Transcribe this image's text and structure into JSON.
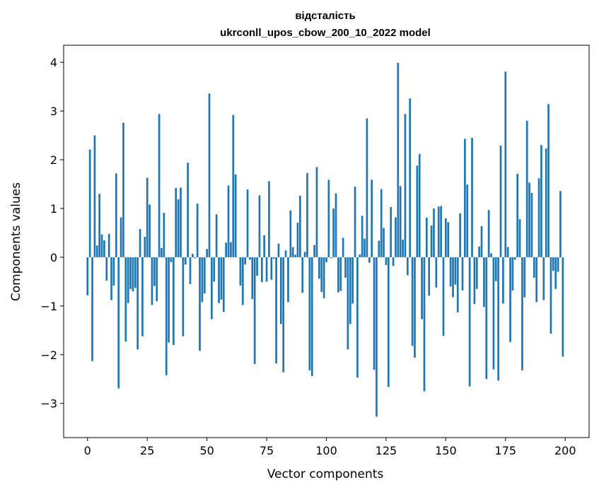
{
  "chart_data": {
    "type": "bar",
    "title": "відсталість",
    "subtitle": "ukrconll_upos_cbow_200_10_2022 model",
    "xlabel": "Vector components",
    "ylabel": "Components values",
    "xlim": [
      -10,
      210
    ],
    "ylim": [
      -3.7,
      4.35
    ],
    "xticks": [
      0,
      25,
      50,
      75,
      100,
      125,
      150,
      175,
      200
    ],
    "yticks": [
      -3,
      -2,
      -1,
      0,
      1,
      2,
      3,
      4
    ],
    "xtick_labels": [
      "0",
      "25",
      "50",
      "75",
      "100",
      "125",
      "150",
      "175",
      "200"
    ],
    "ytick_labels": [
      "−3",
      "−2",
      "−1",
      "0",
      "1",
      "2",
      "3",
      "4"
    ],
    "bar_color": "#1f77b4",
    "grid": false,
    "x": [
      0,
      1,
      2,
      3,
      4,
      5,
      6,
      7,
      8,
      9,
      10,
      11,
      12,
      13,
      14,
      15,
      16,
      17,
      18,
      19,
      20,
      21,
      22,
      23,
      24,
      25,
      26,
      27,
      28,
      29,
      30,
      31,
      32,
      33,
      34,
      35,
      36,
      37,
      38,
      39,
      40,
      41,
      42,
      43,
      44,
      45,
      46,
      47,
      48,
      49,
      50,
      51,
      52,
      53,
      54,
      55,
      56,
      57,
      58,
      59,
      60,
      61,
      62,
      63,
      64,
      65,
      66,
      67,
      68,
      69,
      70,
      71,
      72,
      73,
      74,
      75,
      76,
      77,
      78,
      79,
      80,
      81,
      82,
      83,
      84,
      85,
      86,
      87,
      88,
      89,
      90,
      91,
      92,
      93,
      94,
      95,
      96,
      97,
      98,
      99,
      100,
      101,
      102,
      103,
      104,
      105,
      106,
      107,
      108,
      109,
      110,
      111,
      112,
      113,
      114,
      115,
      116,
      117,
      118,
      119,
      120,
      121,
      122,
      123,
      124,
      125,
      126,
      127,
      128,
      129,
      130,
      131,
      132,
      133,
      134,
      135,
      136,
      137,
      138,
      139,
      140,
      141,
      142,
      143,
      144,
      145,
      146,
      147,
      148,
      149,
      150,
      151,
      152,
      153,
      154,
      155,
      156,
      157,
      158,
      159,
      160,
      161,
      162,
      163,
      164,
      165,
      166,
      167,
      168,
      169,
      170,
      171,
      172,
      173,
      174,
      175,
      176,
      177,
      178,
      179,
      180,
      181,
      182,
      183,
      184,
      185,
      186,
      187,
      188,
      189,
      190,
      191,
      192,
      193,
      194,
      195,
      196,
      197,
      198,
      199
    ],
    "values": [
      -0.78,
      2.21,
      -2.13,
      2.5,
      0.24,
      1.3,
      0.47,
      0.35,
      -0.48,
      0.48,
      -0.88,
      -0.58,
      1.72,
      -2.69,
      0.82,
      2.76,
      -1.73,
      -0.94,
      -0.65,
      -0.7,
      -0.63,
      -1.89,
      0.58,
      -1.62,
      0.42,
      1.63,
      1.08,
      -0.98,
      -0.59,
      -0.9,
      2.94,
      0.19,
      0.91,
      -2.42,
      -1.75,
      -0.1,
      -1.8,
      1.42,
      1.19,
      1.43,
      -1.62,
      -0.15,
      1.94,
      -0.55,
      0.07,
      -0.02,
      1.1,
      -1.92,
      -0.92,
      -0.74,
      0.17,
      3.36,
      -1.27,
      -0.5,
      0.88,
      -0.94,
      -0.87,
      -1.12,
      0.3,
      1.47,
      0.31,
      2.92,
      1.7,
      0.0,
      -0.58,
      -0.98,
      -0.15,
      1.39,
      -0.05,
      -0.86,
      -2.19,
      -0.38,
      1.27,
      -0.51,
      0.45,
      -0.5,
      1.56,
      -0.46,
      -0.03,
      -2.18,
      0.28,
      -1.37,
      -2.36,
      0.14,
      -0.92,
      0.96,
      0.21,
      0.05,
      0.71,
      1.26,
      -0.73,
      0.11,
      1.73,
      -2.32,
      -2.44,
      0.25,
      1.85,
      -0.44,
      -0.71,
      -0.84,
      -0.1,
      1.59,
      -0.02,
      1.0,
      1.31,
      -0.72,
      -0.69,
      0.4,
      -0.42,
      -1.89,
      -1.37,
      -0.95,
      1.45,
      -2.47,
      0.06,
      0.85,
      0.38,
      2.85,
      -0.11,
      1.59,
      -2.31,
      -3.27,
      0.34,
      1.4,
      0.6,
      -0.16,
      -2.66,
      1.03,
      -0.18,
      0.82,
      3.99,
      1.46,
      0.36,
      2.94,
      -0.37,
      3.26,
      -1.82,
      -2.06,
      1.88,
      2.12,
      -1.27,
      -2.75,
      0.81,
      -0.79,
      0.65,
      1.0,
      -0.62,
      1.04,
      1.05,
      -1.61,
      0.8,
      0.72,
      -0.6,
      -0.82,
      -0.56,
      -1.13,
      0.9,
      -0.68,
      2.43,
      1.49,
      -2.65,
      2.45,
      -0.96,
      -0.65,
      0.22,
      0.64,
      -1.02,
      -2.5,
      0.97,
      0.08,
      -2.3,
      -0.49,
      -2.53,
      2.29,
      -0.95,
      3.81,
      0.21,
      -1.74,
      -0.68,
      -0.05,
      1.71,
      0.78,
      -2.32,
      -0.82,
      2.8,
      1.53,
      1.32,
      -0.42,
      -0.92,
      1.62,
      2.3,
      -0.88,
      2.23,
      3.14,
      -1.57,
      -0.28,
      -0.65,
      -0.3,
      1.36,
      -2.04
    ]
  }
}
